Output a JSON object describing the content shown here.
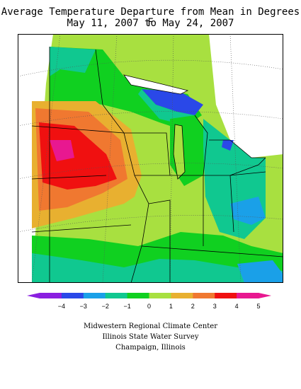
{
  "title": {
    "line1": "Average Temperature Departure from Mean in Degrees F",
    "line2": "May 11, 2007 to May 24, 2007"
  },
  "legend": {
    "ticks": [
      "-4",
      "-3",
      "-2",
      "-1",
      "0",
      "1",
      "2",
      "3",
      "4",
      "5"
    ],
    "colors": [
      "#8a1fe0",
      "#2a48e8",
      "#1aa0e8",
      "#10c890",
      "#10d020",
      "#a8e040",
      "#e8b030",
      "#f07830",
      "#f01010",
      "#e81890"
    ]
  },
  "credits": {
    "line1": "Midwestern Regional Climate Center",
    "line2": "Illinois State Water Survey",
    "line3": "Champaign, Illinois"
  }
}
